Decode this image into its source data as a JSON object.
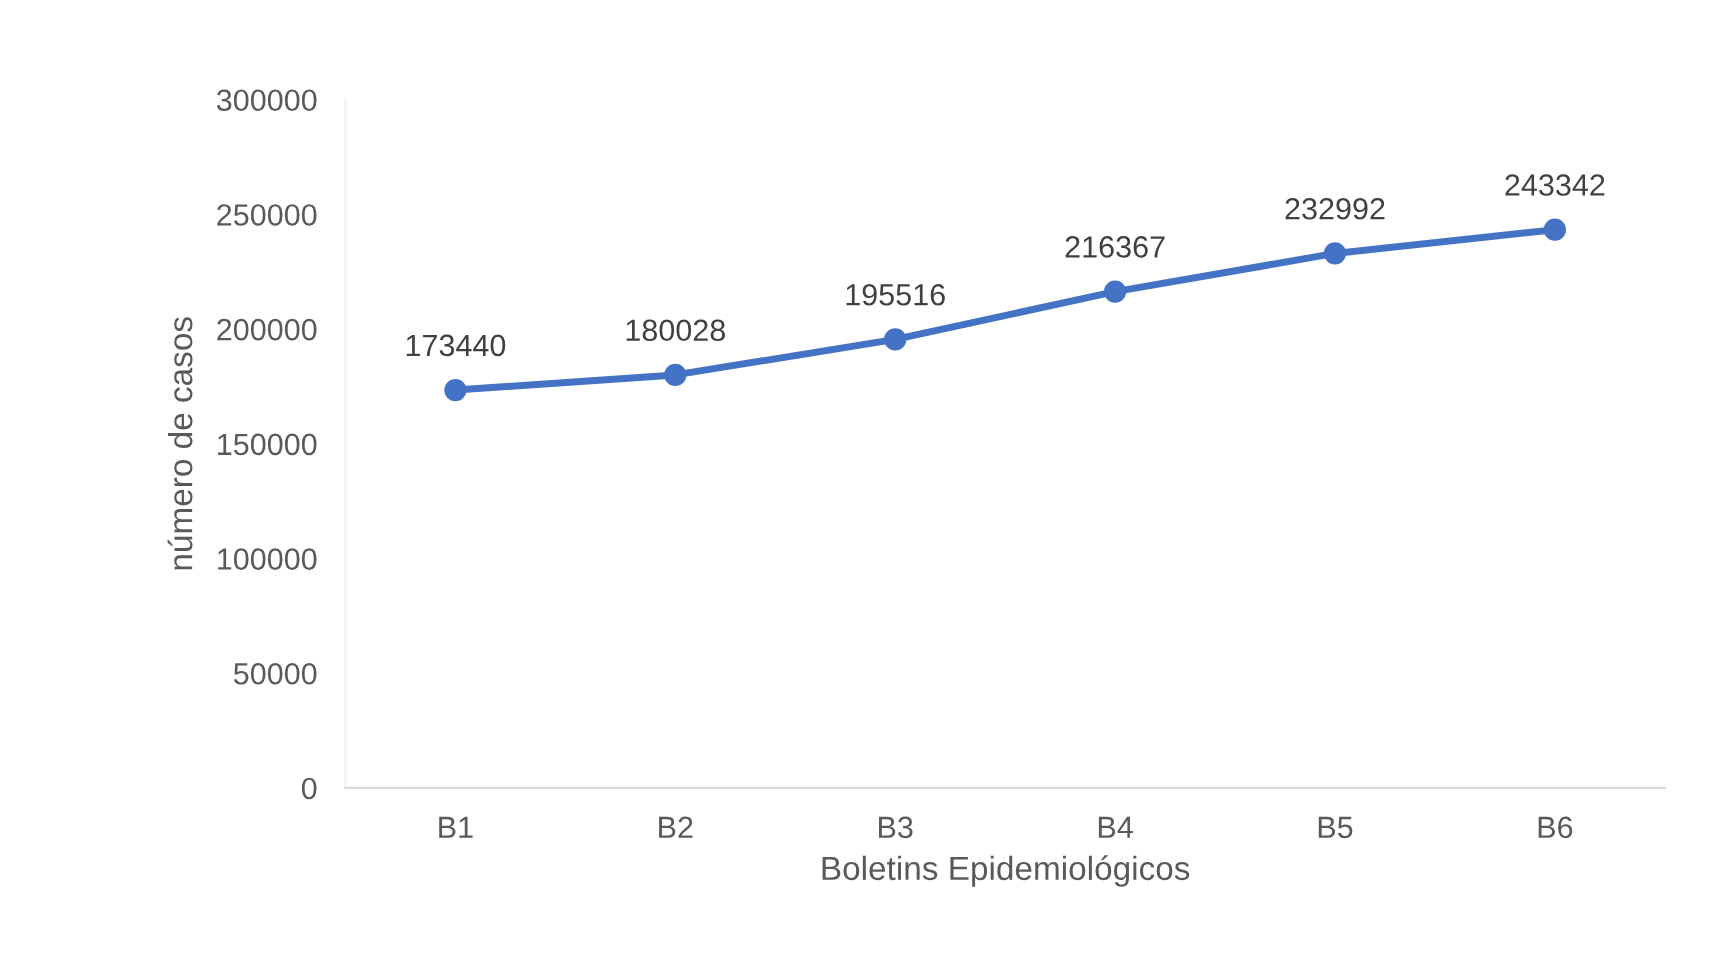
{
  "chart_data": {
    "type": "line",
    "xlabel": "Boletins Epidemiológicos",
    "ylabel": "número de casos",
    "categories": [
      "B1",
      "B2",
      "B3",
      "B4",
      "B5",
      "B6"
    ],
    "series": [
      {
        "color": "#4472c4",
        "values": [
          173440,
          180028,
          195516,
          216367,
          232992,
          243342
        ]
      }
    ],
    "ylim": [
      0,
      300000
    ],
    "yticks": [
      0,
      50000,
      100000,
      150000,
      200000,
      250000,
      300000
    ],
    "data_labels": true,
    "marker": "circle",
    "line_style": "solid",
    "grid": false,
    "legend": false
  }
}
